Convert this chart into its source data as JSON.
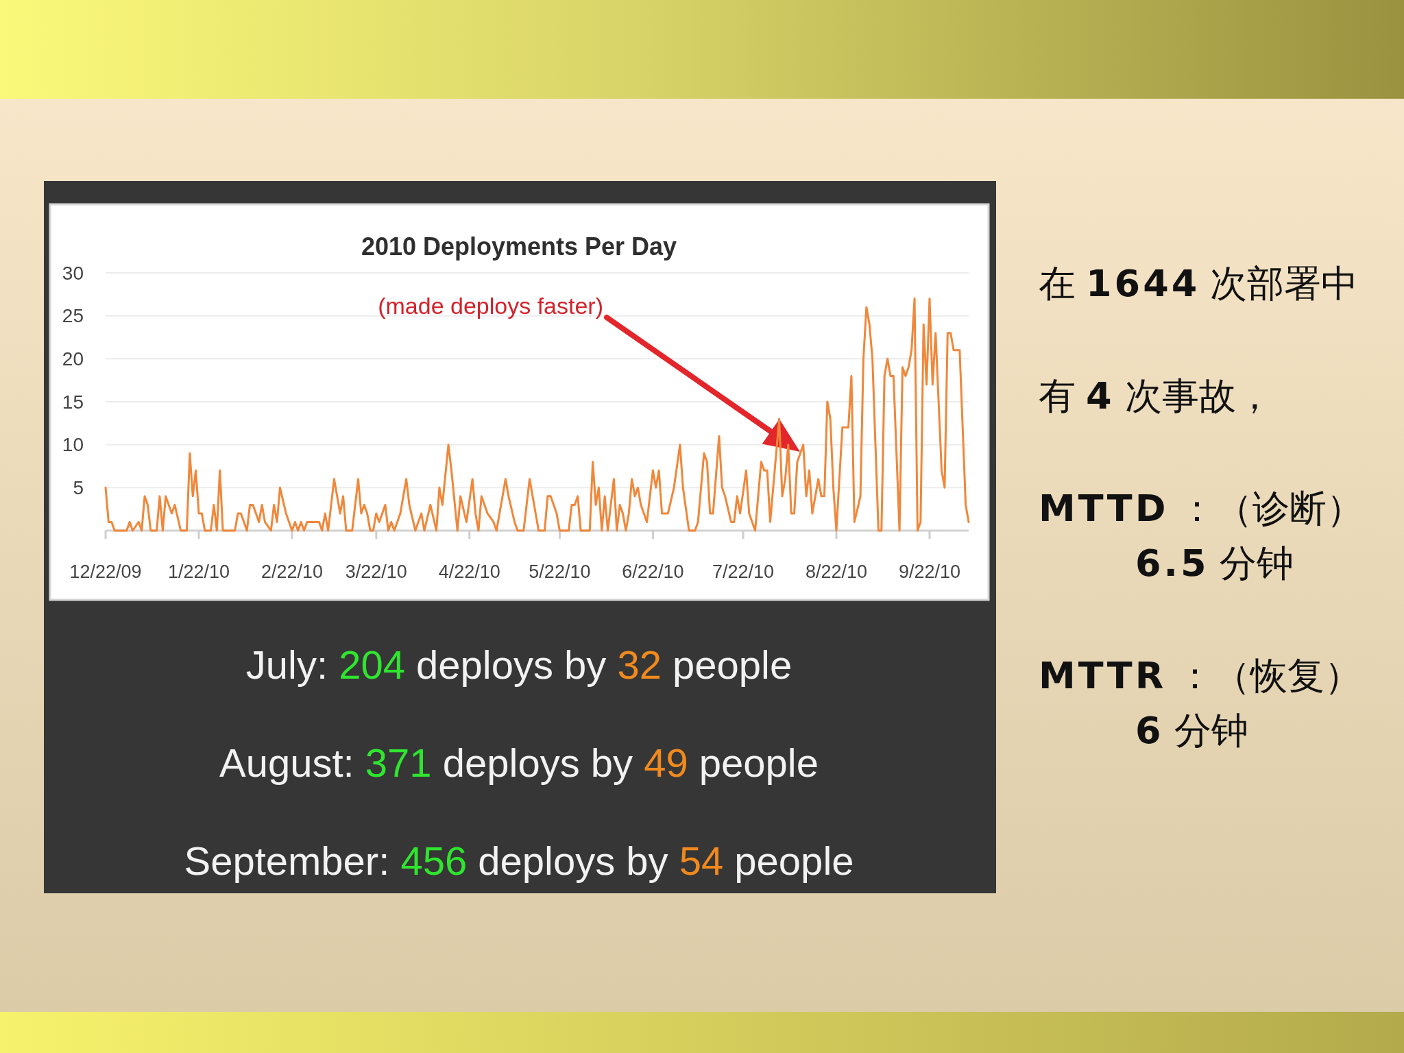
{
  "chart_data": {
    "type": "line",
    "title": "2010 Deployments Per Day",
    "x": [
      "2009-12-22",
      "2009-12-23",
      "2009-12-24",
      "2009-12-25",
      "2009-12-29",
      "2009-12-30",
      "2009-12-31",
      "2010-01-02",
      "2010-01-03",
      "2010-01-04",
      "2010-01-05",
      "2010-01-06",
      "2010-01-08",
      "2010-01-09",
      "2010-01-10",
      "2010-01-11",
      "2010-01-12",
      "2010-01-13",
      "2010-01-14",
      "2010-01-16",
      "2010-01-18",
      "2010-01-19",
      "2010-01-20",
      "2010-01-21",
      "2010-01-22",
      "2010-01-23",
      "2010-01-24",
      "2010-01-26",
      "2010-01-27",
      "2010-01-28",
      "2010-01-29",
      "2010-01-30",
      "2010-02-03",
      "2010-02-04",
      "2010-02-05",
      "2010-02-07",
      "2010-02-08",
      "2010-02-09",
      "2010-02-11",
      "2010-02-12",
      "2010-02-13",
      "2010-02-15",
      "2010-02-16",
      "2010-02-17",
      "2010-02-18",
      "2010-02-20",
      "2010-02-22",
      "2010-02-23",
      "2010-02-24",
      "2010-02-25",
      "2010-02-26",
      "2010-02-27",
      "2010-03-01",
      "2010-03-03",
      "2010-03-04",
      "2010-03-05",
      "2010-03-06",
      "2010-03-08",
      "2010-03-09",
      "2010-03-10",
      "2010-03-11",
      "2010-03-12",
      "2010-03-14",
      "2010-03-16",
      "2010-03-17",
      "2010-03-18",
      "2010-03-19",
      "2010-03-20",
      "2010-03-21",
      "2010-03-22",
      "2010-03-23",
      "2010-03-25",
      "2010-03-26",
      "2010-03-27",
      "2010-03-28",
      "2010-03-30",
      "2010-04-01",
      "2010-04-02",
      "2010-04-04",
      "2010-04-06",
      "2010-04-07",
      "2010-04-09",
      "2010-04-11",
      "2010-04-12",
      "2010-04-13",
      "2010-04-15",
      "2010-04-16",
      "2010-04-18",
      "2010-04-19",
      "2010-04-21",
      "2010-04-23",
      "2010-04-24",
      "2010-04-25",
      "2010-04-26",
      "2010-04-28",
      "2010-04-30",
      "2010-05-01",
      "2010-05-04",
      "2010-05-05",
      "2010-05-07",
      "2010-05-08",
      "2010-05-10",
      "2010-05-12",
      "2010-05-13",
      "2010-05-15",
      "2010-05-17",
      "2010-05-18",
      "2010-05-19",
      "2010-05-21",
      "2010-05-22",
      "2010-05-25",
      "2010-05-26",
      "2010-05-27",
      "2010-05-28",
      "2010-05-29",
      "2010-06-01",
      "2010-06-02",
      "2010-06-03",
      "2010-06-04",
      "2010-06-05",
      "2010-06-06",
      "2010-06-07",
      "2010-06-09",
      "2010-06-10",
      "2010-06-11",
      "2010-06-12",
      "2010-06-13",
      "2010-06-14",
      "2010-06-15",
      "2010-06-16",
      "2010-06-17",
      "2010-06-18",
      "2010-06-20",
      "2010-06-22",
      "2010-06-23",
      "2010-06-24",
      "2010-06-25",
      "2010-06-27",
      "2010-06-29",
      "2010-07-01",
      "2010-07-02",
      "2010-07-04",
      "2010-07-06",
      "2010-07-07",
      "2010-07-09",
      "2010-07-10",
      "2010-07-11",
      "2010-07-12",
      "2010-07-14",
      "2010-07-15",
      "2010-07-16",
      "2010-07-18",
      "2010-07-19",
      "2010-07-20",
      "2010-07-21",
      "2010-07-23",
      "2010-07-24",
      "2010-07-26",
      "2010-07-28",
      "2010-07-29",
      "2010-07-30",
      "2010-07-31",
      "2010-08-02",
      "2010-08-03",
      "2010-08-04",
      "2010-08-05",
      "2010-08-06",
      "2010-08-07",
      "2010-08-08",
      "2010-08-09",
      "2010-08-10",
      "2010-08-11",
      "2010-08-12",
      "2010-08-13",
      "2010-08-14",
      "2010-08-15",
      "2010-08-16",
      "2010-08-17",
      "2010-08-18",
      "2010-08-19",
      "2010-08-20",
      "2010-08-21",
      "2010-08-22",
      "2010-08-24",
      "2010-08-26",
      "2010-08-27",
      "2010-08-28",
      "2010-08-30",
      "2010-08-31",
      "2010-09-01",
      "2010-09-02",
      "2010-09-03",
      "2010-09-05",
      "2010-09-06",
      "2010-09-07",
      "2010-09-08",
      "2010-09-09",
      "2010-09-10",
      "2010-09-12",
      "2010-09-13",
      "2010-09-14",
      "2010-09-15",
      "2010-09-16",
      "2010-09-17",
      "2010-09-18",
      "2010-09-19",
      "2010-09-20",
      "2010-09-21",
      "2010-09-22",
      "2010-09-23",
      "2010-09-24",
      "2010-09-26",
      "2010-09-27",
      "2010-09-28",
      "2010-09-29",
      "2010-09-30",
      "2010-10-02",
      "2010-10-04",
      "2010-10-05"
    ],
    "series": [
      {
        "color": "#f0873a",
        "values": [
          5,
          1,
          1,
          0,
          0,
          1,
          0,
          1,
          0,
          4,
          3,
          0,
          0,
          4,
          0,
          4,
          3,
          2,
          3,
          0,
          0,
          9,
          4,
          7,
          2,
          2,
          0,
          0,
          3,
          0,
          7,
          0,
          0,
          2,
          2,
          0,
          3,
          3,
          1,
          3,
          1,
          0,
          3,
          1,
          5,
          2,
          0,
          1,
          0,
          1,
          0,
          1,
          1,
          1,
          0,
          2,
          0,
          6,
          4,
          2,
          4,
          0,
          0,
          6,
          2,
          3,
          2,
          0,
          0,
          2,
          1,
          3,
          0,
          1,
          0,
          2,
          6,
          3,
          0,
          2,
          0,
          3,
          0,
          5,
          3,
          10,
          7,
          0,
          4,
          1,
          6,
          2,
          0,
          4,
          2,
          1,
          0,
          6,
          4,
          1,
          0,
          0,
          6,
          4,
          0,
          0,
          4,
          4,
          2,
          0,
          0,
          3,
          3,
          4,
          0,
          0,
          8,
          3,
          5,
          0,
          4,
          0,
          6,
          0,
          3,
          2,
          0,
          2,
          6,
          4,
          5,
          3,
          1,
          7,
          5,
          7,
          2,
          2,
          5,
          10,
          5,
          0,
          0,
          1,
          9,
          8,
          2,
          2,
          11,
          5,
          4,
          1,
          1,
          4,
          2,
          7,
          2,
          0,
          8,
          7,
          7,
          1,
          9,
          13,
          4,
          6,
          10,
          2,
          2,
          8,
          9,
          10,
          4,
          7,
          2,
          4,
          6,
          4,
          4,
          15,
          13,
          5,
          0,
          12,
          12,
          18,
          1,
          4,
          20,
          26,
          24,
          20,
          0,
          0,
          18,
          20,
          18,
          18,
          0,
          19,
          18,
          19,
          21,
          27,
          0,
          1,
          24,
          17,
          27,
          17,
          23,
          7,
          5,
          23,
          23,
          21,
          21,
          3,
          1
        ]
      }
    ],
    "xlim": [
      "2009-12-22",
      "2010-10-05"
    ],
    "xticks": [
      {
        "value": "2009-12-22",
        "label": "12/22/09"
      },
      {
        "value": "2010-01-22",
        "label": "1/22/10"
      },
      {
        "value": "2010-02-22",
        "label": "2/22/10"
      },
      {
        "value": "2010-03-22",
        "label": "3/22/10"
      },
      {
        "value": "2010-04-22",
        "label": "4/22/10"
      },
      {
        "value": "2010-05-22",
        "label": "5/22/10"
      },
      {
        "value": "2010-06-22",
        "label": "6/22/10"
      },
      {
        "value": "2010-07-22",
        "label": "7/22/10"
      },
      {
        "value": "2010-08-22",
        "label": "8/22/10"
      },
      {
        "value": "2010-09-22",
        "label": "9/22/10"
      }
    ],
    "ylim": [
      0,
      30
    ],
    "yticks": [
      5,
      10,
      15,
      20,
      25,
      30
    ],
    "grid": "y",
    "annotations": [
      "(made deploys faster)",
      "July: 204 deploys by 32 people",
      "August: 371 deploys by 49 people",
      "September: 456 deploys by 54 people",
      "在 1644 次部署中",
      "有 4 次事故，",
      "MTTD ：（诊断） 6.5 分钟",
      "MTTR ：（恢复） 6 分钟"
    ]
  }
}
